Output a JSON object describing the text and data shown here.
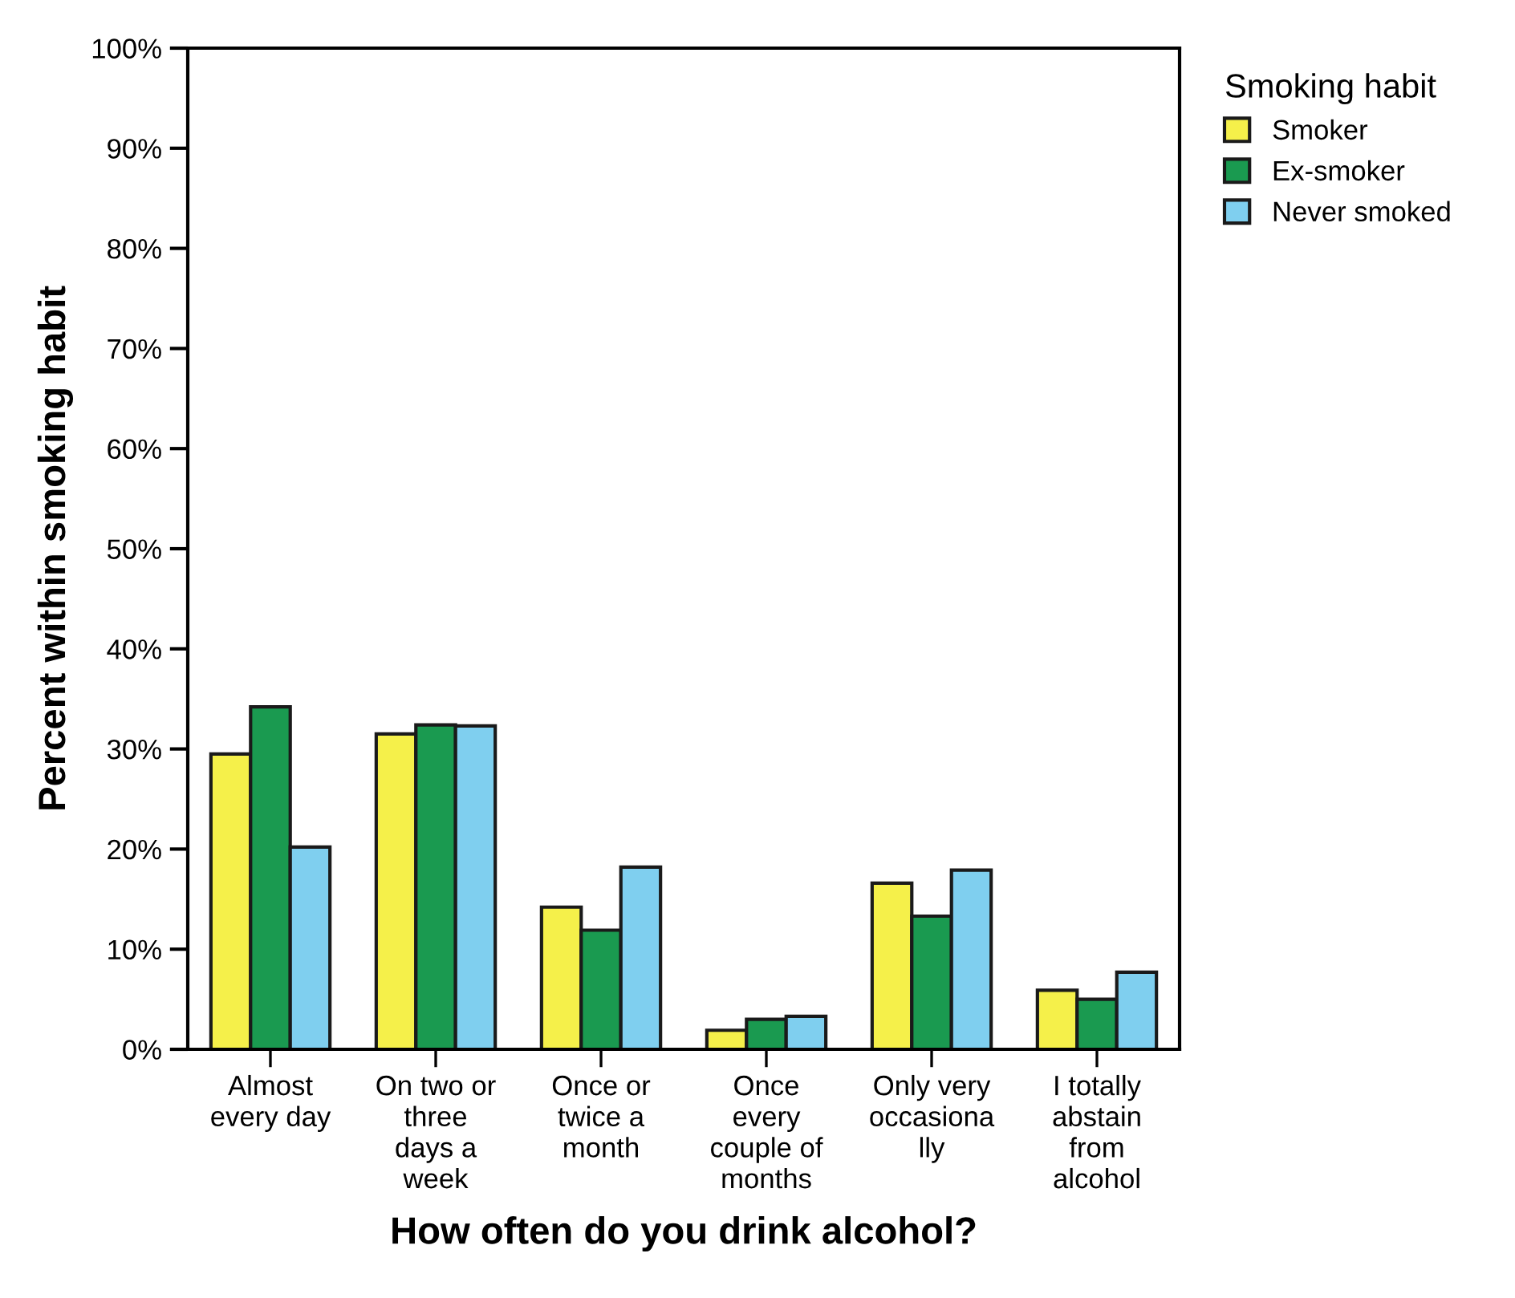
{
  "chart_data": {
    "type": "bar",
    "xlabel": "How often do you drink alcohol?",
    "ylabel": "Percent within smoking habit",
    "legend_title": "Smoking habit",
    "categories": [
      "Almost\nevery day",
      "On two or\nthree\ndays a\nweek",
      "Once or\ntwice a\nmonth",
      "Once\nevery\ncouple of\nmonths",
      "Only very\noccasiona\nlly",
      "I totally\nabstain\nfrom\nalcohol"
    ],
    "series": [
      {
        "name": "Smoker",
        "color": "#f5f04a",
        "values": [
          29.5,
          31.5,
          14.2,
          1.9,
          16.6,
          5.9
        ]
      },
      {
        "name": "Ex-smoker",
        "color": "#1a9a50",
        "values": [
          34.2,
          32.4,
          11.9,
          3.0,
          13.3,
          5.0
        ]
      },
      {
        "name": "Never smoked",
        "color": "#7fcfef",
        "values": [
          20.2,
          32.3,
          18.2,
          3.3,
          17.9,
          7.7
        ]
      }
    ],
    "ylim": [
      0,
      100
    ],
    "yticks": [
      {
        "value": 0,
        "label": "0%"
      },
      {
        "value": 10,
        "label": "10%"
      },
      {
        "value": 20,
        "label": "20%"
      },
      {
        "value": 30,
        "label": "30%"
      },
      {
        "value": 40,
        "label": "40%"
      },
      {
        "value": 50,
        "label": "50%"
      },
      {
        "value": 60,
        "label": "60%"
      },
      {
        "value": 70,
        "label": "70%"
      },
      {
        "value": 80,
        "label": "80%"
      },
      {
        "value": 90,
        "label": "90%"
      },
      {
        "value": 100,
        "label": "100%"
      }
    ],
    "grid": false,
    "legend": "top right"
  }
}
